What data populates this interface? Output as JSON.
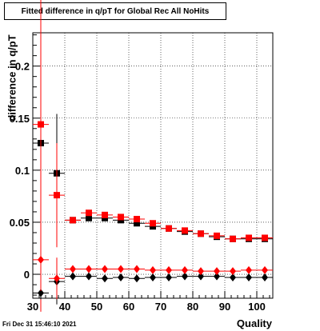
{
  "chart_data": {
    "type": "scatter",
    "title": "Fitted difference in q/pT for Global Rec All NoHits",
    "xlabel": "Quality",
    "ylabel": "difference in q/pT",
    "xlim": [
      30,
      105
    ],
    "ylim": [
      -0.023,
      0.232
    ],
    "grid": true,
    "x_ticks": [
      "30",
      "40",
      "50",
      "60",
      "70",
      "80",
      "90",
      "100"
    ],
    "y_ticks": [
      "0",
      "0.05",
      "0.1",
      "0.15",
      "0.2"
    ],
    "series": [
      {
        "marker": "square",
        "color": "#000000",
        "points": [
          {
            "x": 32.5,
            "y": 0.126,
            "err": 0.03
          },
          {
            "x": 37.5,
            "y": 0.097,
            "err": 0.057
          },
          {
            "x": 42.5,
            "y": 0.052
          },
          {
            "x": 47.5,
            "y": 0.054
          },
          {
            "x": 52.5,
            "y": 0.054
          },
          {
            "x": 57.5,
            "y": 0.052
          },
          {
            "x": 62.5,
            "y": 0.049
          },
          {
            "x": 67.5,
            "y": 0.046
          },
          {
            "x": 72.5,
            "y": 0.044
          },
          {
            "x": 77.5,
            "y": 0.041
          },
          {
            "x": 82.5,
            "y": 0.039
          },
          {
            "x": 87.5,
            "y": 0.036
          },
          {
            "x": 92.5,
            "y": 0.034
          },
          {
            "x": 97.5,
            "y": 0.034
          },
          {
            "x": 102.5,
            "y": 0.034
          }
        ]
      },
      {
        "marker": "square",
        "color": "#ff0000",
        "points": [
          {
            "x": 32.5,
            "y": 0.144,
            "err": 0.18
          },
          {
            "x": 37.5,
            "y": 0.076,
            "err": 0.05
          },
          {
            "x": 42.5,
            "y": 0.052
          },
          {
            "x": 47.5,
            "y": 0.059
          },
          {
            "x": 52.5,
            "y": 0.057
          },
          {
            "x": 57.5,
            "y": 0.055
          },
          {
            "x": 62.5,
            "y": 0.053
          },
          {
            "x": 67.5,
            "y": 0.049
          },
          {
            "x": 72.5,
            "y": 0.044
          },
          {
            "x": 77.5,
            "y": 0.042
          },
          {
            "x": 82.5,
            "y": 0.039
          },
          {
            "x": 87.5,
            "y": 0.037
          },
          {
            "x": 92.5,
            "y": 0.034
          },
          {
            "x": 97.5,
            "y": 0.035
          },
          {
            "x": 102.5,
            "y": 0.035
          }
        ]
      },
      {
        "marker": "diamond",
        "color": "#000000",
        "points": [
          {
            "x": 32.5,
            "y": -0.018,
            "err": 0.006
          },
          {
            "x": 37.5,
            "y": -0.007,
            "err": 0.022
          },
          {
            "x": 42.5,
            "y": -0.002
          },
          {
            "x": 47.5,
            "y": -0.002
          },
          {
            "x": 52.5,
            "y": -0.004
          },
          {
            "x": 57.5,
            "y": -0.003
          },
          {
            "x": 62.5,
            "y": -0.004
          },
          {
            "x": 67.5,
            "y": -0.003
          },
          {
            "x": 72.5,
            "y": -0.003
          },
          {
            "x": 77.5,
            "y": -0.002
          },
          {
            "x": 82.5,
            "y": -0.002
          },
          {
            "x": 87.5,
            "y": -0.002
          },
          {
            "x": 92.5,
            "y": -0.003
          },
          {
            "x": 97.5,
            "y": -0.003
          },
          {
            "x": 102.5,
            "y": -0.003
          }
        ]
      },
      {
        "marker": "diamond",
        "color": "#ff0000",
        "points": [
          {
            "x": 32.5,
            "y": 0.014,
            "err": 0.03
          },
          {
            "x": 37.5,
            "y": -0.004,
            "err": 0.02
          },
          {
            "x": 42.5,
            "y": 0.005
          },
          {
            "x": 47.5,
            "y": 0.005
          },
          {
            "x": 52.5,
            "y": 0.005
          },
          {
            "x": 57.5,
            "y": 0.005
          },
          {
            "x": 62.5,
            "y": 0.005
          },
          {
            "x": 67.5,
            "y": 0.004
          },
          {
            "x": 72.5,
            "y": 0.004
          },
          {
            "x": 77.5,
            "y": 0.004
          },
          {
            "x": 82.5,
            "y": 0.003
          },
          {
            "x": 87.5,
            "y": 0.003
          },
          {
            "x": 92.5,
            "y": 0.003
          },
          {
            "x": 97.5,
            "y": 0.004
          },
          {
            "x": 102.5,
            "y": 0.004
          }
        ]
      }
    ]
  },
  "footer": {
    "timestamp": "Fri Dec 31 15:46:10 2021"
  }
}
